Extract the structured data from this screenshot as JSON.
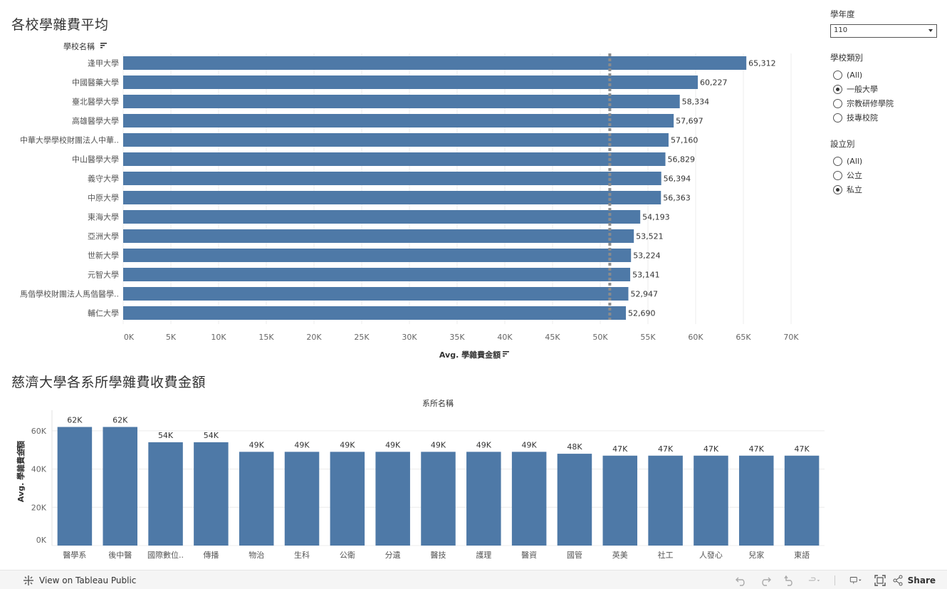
{
  "titles": {
    "chart1": "各校學雜費平均",
    "chart2": "慈濟大學各系所學雜費收費金額"
  },
  "filters": {
    "year": {
      "label": "學年度",
      "value": "110"
    },
    "school_type": {
      "label": "學校類別",
      "options": [
        {
          "label": "(All)",
          "checked": false
        },
        {
          "label": "一般大學",
          "checked": true
        },
        {
          "label": "宗教研修學院",
          "checked": false
        },
        {
          "label": "技專校院",
          "checked": false
        }
      ]
    },
    "establish": {
      "label": "設立別",
      "options": [
        {
          "label": "(All)",
          "checked": false
        },
        {
          "label": "公立",
          "checked": false
        },
        {
          "label": "私立",
          "checked": true
        }
      ]
    }
  },
  "toolbar": {
    "view_label": "View on Tableau Public",
    "share_label": "Share"
  },
  "colors": {
    "bar": "#4e79a7",
    "refline": "#8c8c8c",
    "grid": "#ececec"
  },
  "chart_data": [
    {
      "type": "bar",
      "orientation": "horizontal",
      "row_header": "學校名稱",
      "xlabel": "Avg. 學雜費金額",
      "xlim": [
        0,
        70000
      ],
      "xticks": [
        "0K",
        "5K",
        "10K",
        "15K",
        "20K",
        "25K",
        "30K",
        "35K",
        "40K",
        "45K",
        "50K",
        "55K",
        "60K",
        "65K",
        "70K"
      ],
      "reference_line": 51000,
      "categories": [
        "逢甲大學",
        "中國醫藥大學",
        "臺北醫學大學",
        "高雄醫學大學",
        "中華大學學校財團法人中華..",
        "中山醫學大學",
        "義守大學",
        "中原大學",
        "東海大學",
        "亞洲大學",
        "世新大學",
        "元智大學",
        "馬偕學校財團法人馬偕醫學..",
        "輔仁大學"
      ],
      "values": [
        65312,
        60227,
        58334,
        57697,
        57160,
        56829,
        56394,
        56363,
        54193,
        53521,
        53224,
        53141,
        52947,
        52690
      ],
      "value_labels": [
        "65,312",
        "60,227",
        "58,334",
        "57,697",
        "57,160",
        "56,829",
        "56,394",
        "56,363",
        "54,193",
        "53,521",
        "53,224",
        "53,141",
        "52,947",
        "52,690"
      ]
    },
    {
      "type": "bar",
      "orientation": "vertical",
      "column_header": "系所名稱",
      "ylabel": "Avg. 學雜費金額",
      "ylim": [
        0,
        70000
      ],
      "yticks": [
        "0K",
        "20K",
        "40K",
        "60K"
      ],
      "categories": [
        "醫學系",
        "後中醫",
        "國際數位..",
        "傳播",
        "物治",
        "生科",
        "公衛",
        "分遺",
        "醫技",
        "護理",
        "醫資",
        "國管",
        "英美",
        "社工",
        "人發心",
        "兒家",
        "東語"
      ],
      "values": [
        62000,
        62000,
        54000,
        54000,
        49000,
        49000,
        49000,
        49000,
        49000,
        49000,
        49000,
        48000,
        47000,
        47000,
        47000,
        47000,
        47000
      ],
      "value_labels": [
        "62K",
        "62K",
        "54K",
        "54K",
        "49K",
        "49K",
        "49K",
        "49K",
        "49K",
        "49K",
        "49K",
        "48K",
        "47K",
        "47K",
        "47K",
        "47K",
        "47K"
      ]
    }
  ]
}
